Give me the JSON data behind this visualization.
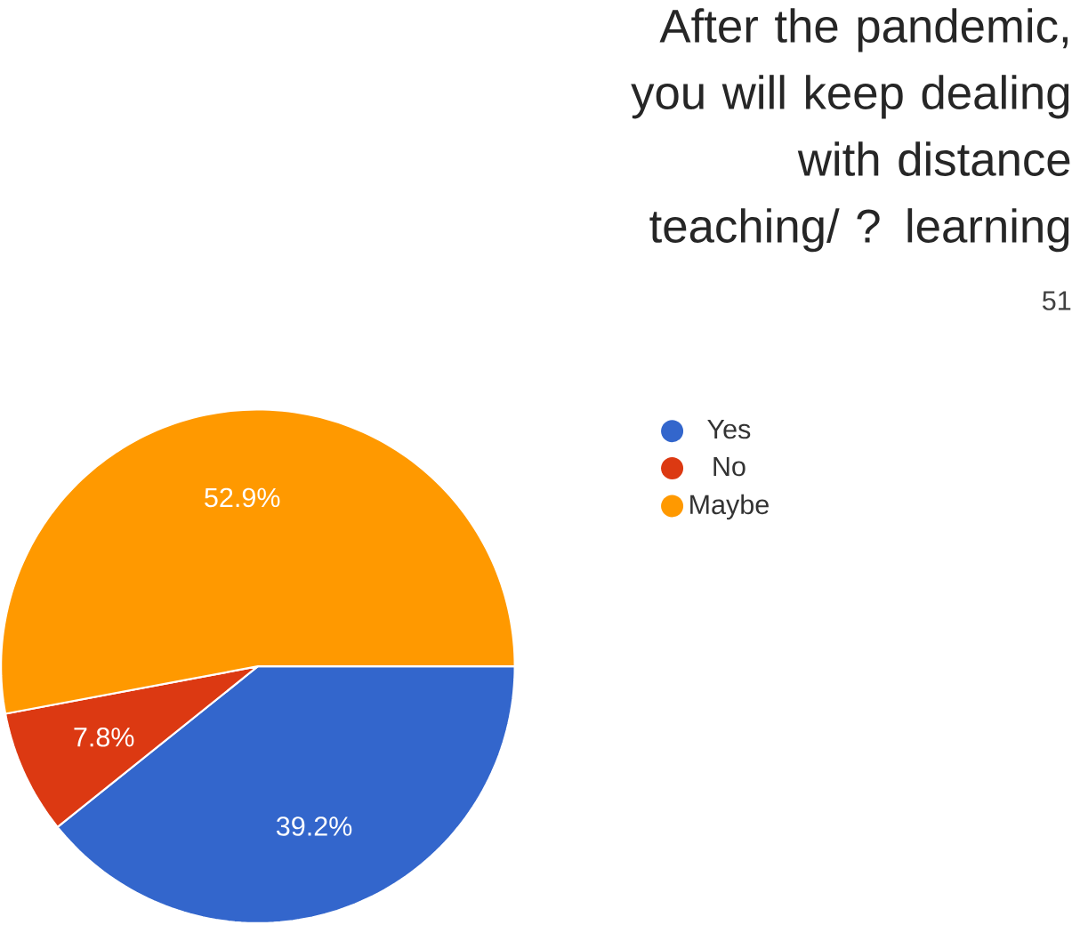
{
  "chart_data": {
    "type": "pie",
    "title": "After the pandemic, you will keep dealing with distance teaching/ ? learning",
    "subtitle": "51",
    "categories": [
      "Yes",
      "No",
      "Maybe"
    ],
    "values": [
      39.2,
      7.8,
      52.9
    ],
    "value_labels": [
      "39.2%",
      "7.8%",
      "52.9%"
    ],
    "colors": [
      "#3366cc",
      "#dc3912",
      "#ff9900"
    ],
    "legend": "right"
  }
}
